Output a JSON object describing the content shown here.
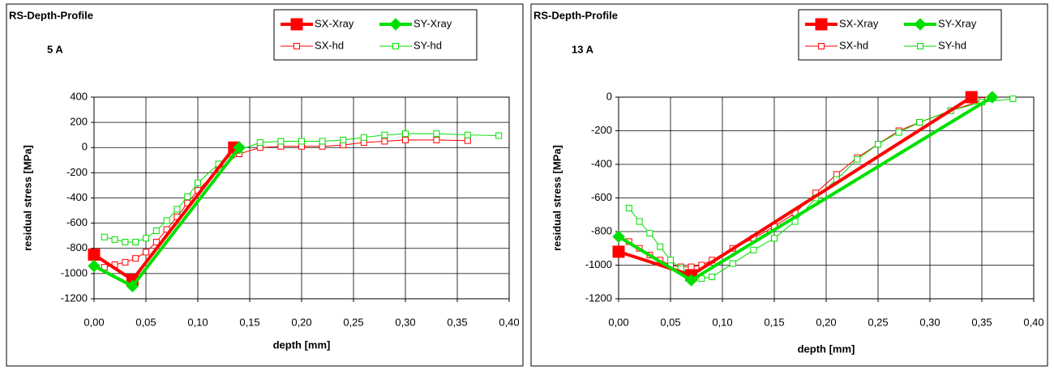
{
  "chart_data": [
    {
      "type": "line",
      "title": "RS-Depth-Profile",
      "subtitle": "5 A",
      "xlabel": "depth [mm]",
      "ylabel": "residual stress [MPa]",
      "xlim": [
        0,
        0.4
      ],
      "ylim": [
        -1200,
        400
      ],
      "xticks": [
        {
          "value": 0,
          "label": "0,00"
        },
        {
          "value": 0.05,
          "label": "0,05"
        },
        {
          "value": 0.1,
          "label": "0,10"
        },
        {
          "value": 0.15,
          "label": "0,15"
        },
        {
          "value": 0.2,
          "label": "0,20"
        },
        {
          "value": 0.25,
          "label": "0,25"
        },
        {
          "value": 0.3,
          "label": "0,30"
        },
        {
          "value": 0.35,
          "label": "0,35"
        },
        {
          "value": 0.4,
          "label": "0,40"
        }
      ],
      "yticks": [
        -1200,
        -1000,
        -800,
        -600,
        -400,
        -200,
        0,
        200,
        400
      ],
      "grid": true,
      "series": [
        {
          "name": "SX-Xray",
          "color": "#ff0000",
          "marker": "square",
          "filled": true,
          "line_width": 4,
          "x": [
            0,
            0.037,
            0.135
          ],
          "values": [
            -850,
            -1050,
            0
          ]
        },
        {
          "name": "SY-Xray",
          "color": "#00e000",
          "marker": "diamond",
          "filled": true,
          "line_width": 4,
          "x": [
            0,
            0.037,
            0.14
          ],
          "values": [
            -940,
            -1100,
            0
          ]
        },
        {
          "name": "SX-hd",
          "color": "#ff0000",
          "marker": "square",
          "filled": false,
          "line_width": 1,
          "x": [
            0.01,
            0.02,
            0.03,
            0.04,
            0.05,
            0.06,
            0.07,
            0.08,
            0.09,
            0.1,
            0.12,
            0.14,
            0.16,
            0.18,
            0.2,
            0.22,
            0.24,
            0.26,
            0.28,
            0.3,
            0.33,
            0.36
          ],
          "values": [
            -950,
            -930,
            -910,
            -880,
            -830,
            -750,
            -650,
            -550,
            -440,
            -340,
            -170,
            -50,
            0,
            10,
            10,
            10,
            20,
            40,
            50,
            60,
            60,
            55
          ]
        },
        {
          "name": "SY-hd",
          "color": "#00e000",
          "marker": "square",
          "filled": false,
          "line_width": 1,
          "x": [
            0.01,
            0.02,
            0.03,
            0.04,
            0.05,
            0.06,
            0.07,
            0.08,
            0.09,
            0.1,
            0.12,
            0.14,
            0.16,
            0.18,
            0.2,
            0.22,
            0.24,
            0.26,
            0.28,
            0.3,
            0.33,
            0.36,
            0.39
          ],
          "values": [
            -710,
            -730,
            -750,
            -750,
            -720,
            -660,
            -580,
            -490,
            -390,
            -280,
            -130,
            -20,
            40,
            50,
            50,
            50,
            60,
            80,
            100,
            110,
            110,
            100,
            95
          ]
        }
      ]
    },
    {
      "type": "line",
      "title": "RS-Depth-Profile",
      "subtitle": "13 A",
      "xlabel": "depth [mm]",
      "ylabel": "residual stress [MPa]",
      "xlim": [
        0,
        0.4
      ],
      "ylim": [
        -1200,
        0
      ],
      "xticks": [
        {
          "value": 0,
          "label": "0,00"
        },
        {
          "value": 0.05,
          "label": "0,05"
        },
        {
          "value": 0.1,
          "label": "0,10"
        },
        {
          "value": 0.15,
          "label": "0,15"
        },
        {
          "value": 0.2,
          "label": "0,20"
        },
        {
          "value": 0.25,
          "label": "0,25"
        },
        {
          "value": 0.3,
          "label": "0,30"
        },
        {
          "value": 0.35,
          "label": "0,35"
        },
        {
          "value": 0.4,
          "label": "0,40"
        }
      ],
      "yticks": [
        -1200,
        -1000,
        -800,
        -600,
        -400,
        -200,
        0
      ],
      "grid": true,
      "series": [
        {
          "name": "SX-Xray",
          "color": "#ff0000",
          "marker": "square",
          "filled": true,
          "line_width": 4,
          "x": [
            0,
            0.07,
            0.34
          ],
          "values": [
            -920,
            -1060,
            0
          ]
        },
        {
          "name": "SY-Xray",
          "color": "#00e000",
          "marker": "diamond",
          "filled": true,
          "line_width": 4,
          "x": [
            0,
            0.07,
            0.36
          ],
          "values": [
            -830,
            -1090,
            0
          ]
        },
        {
          "name": "SX-hd",
          "color": "#ff0000",
          "marker": "square",
          "filled": false,
          "line_width": 1,
          "x": [
            0.01,
            0.02,
            0.03,
            0.04,
            0.05,
            0.06,
            0.07,
            0.08,
            0.09,
            0.11,
            0.13,
            0.15,
            0.17,
            0.19,
            0.21,
            0.23,
            0.25,
            0.27,
            0.29,
            0.32,
            0.35
          ],
          "values": [
            -860,
            -900,
            -940,
            -970,
            -1000,
            -1010,
            -1010,
            -1000,
            -970,
            -900,
            -840,
            -770,
            -690,
            -570,
            -460,
            -360,
            -280,
            -200,
            -150,
            -80,
            -20
          ]
        },
        {
          "name": "SY-hd",
          "color": "#00e000",
          "marker": "square",
          "filled": false,
          "line_width": 1,
          "x": [
            0.01,
            0.02,
            0.03,
            0.04,
            0.05,
            0.06,
            0.07,
            0.08,
            0.09,
            0.11,
            0.13,
            0.15,
            0.17,
            0.19,
            0.21,
            0.23,
            0.25,
            0.27,
            0.29,
            0.32,
            0.35,
            0.38
          ],
          "values": [
            -660,
            -740,
            -810,
            -890,
            -970,
            -1020,
            -1060,
            -1080,
            -1070,
            -990,
            -910,
            -840,
            -740,
            -600,
            -490,
            -370,
            -280,
            -210,
            -150,
            -80,
            -30,
            -10
          ]
        }
      ]
    }
  ]
}
